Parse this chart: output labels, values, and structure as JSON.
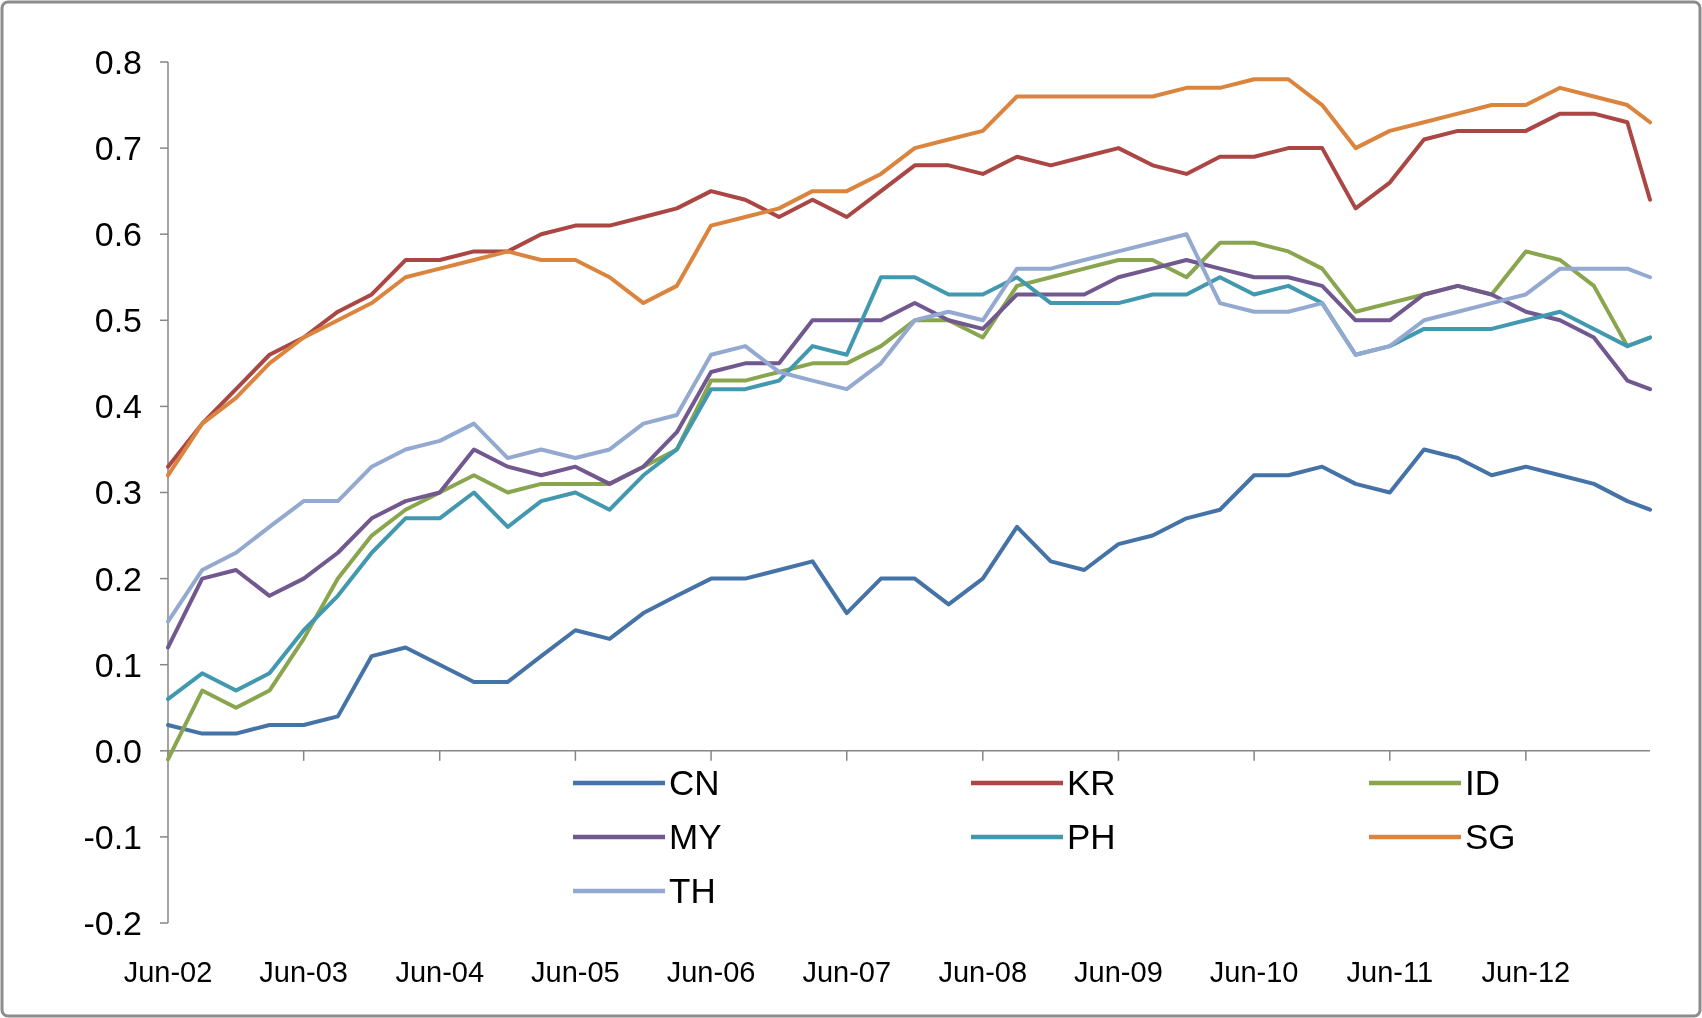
{
  "chart_data": {
    "type": "line",
    "x": [
      "2002-06",
      "2002-09",
      "2002-12",
      "2003-03",
      "2003-06",
      "2003-09",
      "2003-12",
      "2004-03",
      "2004-06",
      "2004-09",
      "2004-12",
      "2005-03",
      "2005-06",
      "2005-09",
      "2005-12",
      "2006-03",
      "2006-06",
      "2006-09",
      "2006-12",
      "2007-03",
      "2007-06",
      "2007-09",
      "2007-12",
      "2008-03",
      "2008-06",
      "2008-09",
      "2008-12",
      "2009-03",
      "2009-06",
      "2009-09",
      "2009-12",
      "2010-03",
      "2010-06",
      "2010-09",
      "2010-12",
      "2011-03",
      "2011-06",
      "2011-09",
      "2011-12",
      "2012-03",
      "2012-06",
      "2012-09",
      "2012-12",
      "2013-03",
      "2013-05"
    ],
    "series": [
      {
        "name": "CN",
        "color": "#4572a7",
        "values": [
          0.03,
          0.02,
          0.02,
          0.03,
          0.03,
          0.04,
          0.11,
          0.12,
          0.1,
          0.08,
          0.08,
          0.11,
          0.14,
          0.13,
          0.16,
          0.18,
          0.2,
          0.2,
          0.21,
          0.22,
          0.16,
          0.2,
          0.2,
          0.17,
          0.2,
          0.26,
          0.22,
          0.21,
          0.24,
          0.25,
          0.27,
          0.28,
          0.32,
          0.32,
          0.33,
          0.31,
          0.3,
          0.35,
          0.34,
          0.32,
          0.33,
          0.32,
          0.31,
          0.29,
          0.28
        ]
      },
      {
        "name": "KR",
        "color": "#aa4643",
        "values": [
          0.33,
          0.38,
          0.42,
          0.46,
          0.48,
          0.51,
          0.53,
          0.57,
          0.57,
          0.58,
          0.58,
          0.6,
          0.61,
          0.61,
          0.62,
          0.63,
          0.65,
          0.64,
          0.62,
          0.64,
          0.62,
          0.65,
          0.68,
          0.68,
          0.67,
          0.69,
          0.68,
          0.69,
          0.7,
          0.68,
          0.67,
          0.69,
          0.69,
          0.7,
          0.7,
          0.63,
          0.66,
          0.71,
          0.72,
          0.72,
          0.72,
          0.74,
          0.74,
          0.73,
          0.64
        ]
      },
      {
        "name": "ID",
        "color": "#89a54e",
        "values": [
          -0.01,
          0.07,
          0.05,
          0.07,
          0.13,
          0.2,
          0.25,
          0.28,
          0.3,
          0.32,
          0.3,
          0.31,
          0.31,
          0.31,
          0.33,
          0.35,
          0.43,
          0.43,
          0.44,
          0.45,
          0.45,
          0.47,
          0.5,
          0.5,
          0.48,
          0.54,
          0.55,
          0.56,
          0.57,
          0.57,
          0.55,
          0.59,
          0.59,
          0.58,
          0.56,
          0.51,
          0.52,
          0.53,
          0.54,
          0.53,
          0.58,
          0.57,
          0.54,
          0.47,
          0.48
        ]
      },
      {
        "name": "MY",
        "color": "#71588f",
        "values": [
          0.12,
          0.2,
          0.21,
          0.18,
          0.2,
          0.23,
          0.27,
          0.29,
          0.3,
          0.35,
          0.33,
          0.32,
          0.33,
          0.31,
          0.33,
          0.37,
          0.44,
          0.45,
          0.45,
          0.5,
          0.5,
          0.5,
          0.52,
          0.5,
          0.49,
          0.53,
          0.53,
          0.53,
          0.55,
          0.56,
          0.57,
          0.56,
          0.55,
          0.55,
          0.54,
          0.5,
          0.5,
          0.53,
          0.54,
          0.53,
          0.51,
          0.5,
          0.48,
          0.43,
          0.42
        ]
      },
      {
        "name": "PH",
        "color": "#4198af",
        "values": [
          0.06,
          0.09,
          0.07,
          0.09,
          0.14,
          0.18,
          0.23,
          0.27,
          0.27,
          0.3,
          0.26,
          0.29,
          0.3,
          0.28,
          0.32,
          0.35,
          0.42,
          0.42,
          0.43,
          0.47,
          0.46,
          0.55,
          0.55,
          0.53,
          0.53,
          0.55,
          0.52,
          0.52,
          0.52,
          0.53,
          0.53,
          0.55,
          0.53,
          0.54,
          0.52,
          0.46,
          0.47,
          0.49,
          0.49,
          0.49,
          0.5,
          0.51,
          0.49,
          0.47,
          0.48
        ]
      },
      {
        "name": "SG",
        "color": "#db843d",
        "values": [
          0.32,
          0.38,
          0.41,
          0.45,
          0.48,
          0.5,
          0.52,
          0.55,
          0.56,
          0.57,
          0.58,
          0.57,
          0.57,
          0.55,
          0.52,
          0.54,
          0.61,
          0.62,
          0.63,
          0.65,
          0.65,
          0.67,
          0.7,
          0.71,
          0.72,
          0.76,
          0.76,
          0.76,
          0.76,
          0.76,
          0.77,
          0.77,
          0.78,
          0.78,
          0.75,
          0.7,
          0.72,
          0.73,
          0.74,
          0.75,
          0.75,
          0.77,
          0.76,
          0.75,
          0.73
        ]
      },
      {
        "name": "TH",
        "color": "#93a9cf",
        "values": [
          0.15,
          0.21,
          0.23,
          0.26,
          0.29,
          0.29,
          0.33,
          0.35,
          0.36,
          0.38,
          0.34,
          0.35,
          0.34,
          0.35,
          0.38,
          0.39,
          0.46,
          0.47,
          0.44,
          0.43,
          0.42,
          0.45,
          0.5,
          0.51,
          0.5,
          0.56,
          0.56,
          0.57,
          0.58,
          0.59,
          0.6,
          0.52,
          0.51,
          0.51,
          0.52,
          0.46,
          0.47,
          0.5,
          0.51,
          0.52,
          0.53,
          0.56,
          0.56,
          0.56,
          0.55
        ]
      }
    ],
    "xlim": [
      "2002-06",
      "2013-05"
    ],
    "xticks": [
      {
        "value": "2002-06",
        "label": "Jun-02"
      },
      {
        "value": "2003-06",
        "label": "Jun-03"
      },
      {
        "value": "2004-06",
        "label": "Jun-04"
      },
      {
        "value": "2005-06",
        "label": "Jun-05"
      },
      {
        "value": "2006-06",
        "label": "Jun-06"
      },
      {
        "value": "2007-06",
        "label": "Jun-07"
      },
      {
        "value": "2008-06",
        "label": "Jun-08"
      },
      {
        "value": "2009-06",
        "label": "Jun-09"
      },
      {
        "value": "2010-06",
        "label": "Jun-10"
      },
      {
        "value": "2011-06",
        "label": "Jun-11"
      },
      {
        "value": "2012-06",
        "label": "Jun-12"
      }
    ],
    "ylim": [
      -0.2,
      0.8
    ],
    "yticks": [
      {
        "value": -0.2,
        "label": "-0.2"
      },
      {
        "value": -0.1,
        "label": "-0.1"
      },
      {
        "value": 0,
        "label": "0.0"
      },
      {
        "value": 0.1,
        "label": "0.1"
      },
      {
        "value": 0.2,
        "label": "0.2"
      },
      {
        "value": 0.3,
        "label": "0.3"
      },
      {
        "value": 0.4,
        "label": "0.4"
      },
      {
        "value": 0.5,
        "label": "0.5"
      },
      {
        "value": 0.6,
        "label": "0.6"
      },
      {
        "value": 0.7,
        "label": "0.7"
      },
      {
        "value": 0.8,
        "label": "0.8"
      }
    ],
    "legend": "bottom right",
    "marker": "none",
    "line_style": "solid"
  }
}
